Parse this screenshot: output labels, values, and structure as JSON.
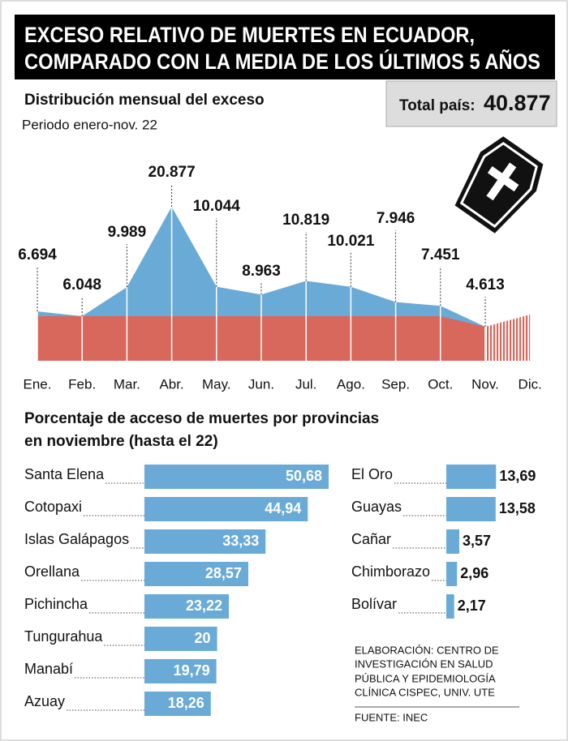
{
  "header": {
    "title_lines": [
      "EXCESO RELATIVO DE MUERTES EN ECUADOR,",
      "COMPARADO CON LA MEDIA DE LOS ÚLTIMOS 5 AÑOS"
    ]
  },
  "total": {
    "label": "Total país:",
    "value": "40.877"
  },
  "chart_data": [
    {
      "type": "area",
      "title": "Distribución mensual del exceso",
      "subtitle": "Periodo enero-nov. 22",
      "categories": [
        "Ene.",
        "Feb.",
        "Mar.",
        "Abr.",
        "May.",
        "Jun.",
        "Jul.",
        "Ago.",
        "Sep.",
        "Oct.",
        "Nov.",
        "Dic."
      ],
      "values": [
        6694,
        6048,
        9989,
        20877,
        10044,
        8963,
        10819,
        10021,
        7946,
        7451,
        4613,
        null
      ],
      "value_labels": [
        "6.694",
        "6.048",
        "9.989",
        "20.877",
        "10.044",
        "8.963",
        "10.819",
        "10.021",
        "7.946",
        "7.451",
        "4.613",
        null
      ],
      "color": "#6aaad6"
    },
    {
      "type": "barh",
      "title_lines": [
        "Porcentaje de acceso de muertes por provincias",
        "en noviembre (hasta el 22)"
      ],
      "categories": [
        "Santa Elena",
        "Cotopaxi",
        "Islas Galápagos",
        "Orellana",
        "Pichincha",
        "Tungurahua",
        "Manabí",
        "Azuay",
        "El Oro",
        "Guayas",
        "Cañar",
        "Chimborazo",
        "Bolívar"
      ],
      "values": [
        50.68,
        44.94,
        33.33,
        28.57,
        23.22,
        20,
        19.79,
        18.26,
        13.69,
        13.58,
        3.57,
        2.96,
        2.17
      ],
      "value_labels": [
        "50,68",
        "44,94",
        "33,33",
        "28,57",
        "23,22",
        "20",
        "19,79",
        "18,26",
        "13,69",
        "13,58",
        "3,57",
        "2,96",
        "2,17"
      ],
      "color": "#6aaad6"
    }
  ],
  "credit": [
    "ELABORACIÓN:  CENTRO DE",
    "INVESTIGACIÓN EN SALUD",
    "PÚBLICA Y EPIDEMIOLOGÍA",
    "CLÍNICA CISPEC, UNIV. UTE"
  ],
  "source": "FUENTE: INEC"
}
